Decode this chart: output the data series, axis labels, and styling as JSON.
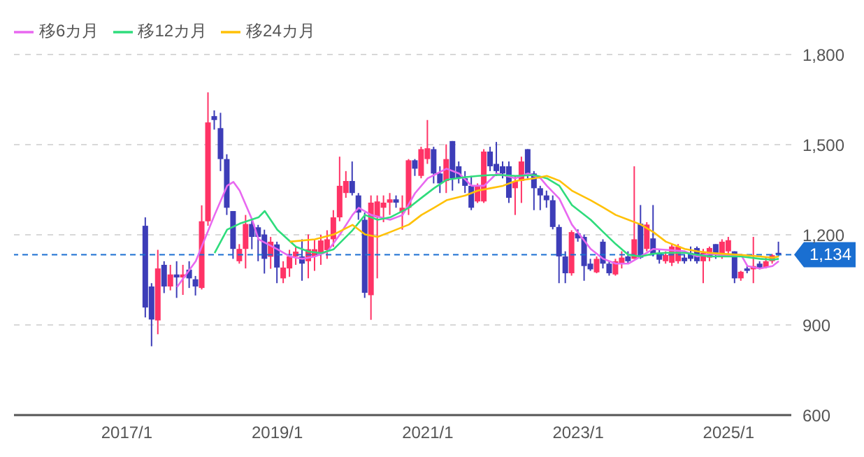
{
  "chart_data": {
    "type": "candlestick",
    "legend": "top left",
    "grid": "y",
    "xlim": [
      "2015-07",
      "2025-11"
    ],
    "xticks": [
      {
        "value": "2017-01",
        "label": "2017/1"
      },
      {
        "value": "2019-01",
        "label": "2019/1"
      },
      {
        "value": "2021-01",
        "label": "2021/1"
      },
      {
        "value": "2023-01",
        "label": "2023/1"
      },
      {
        "value": "2025-01",
        "label": "2025/1"
      }
    ],
    "ylim": [
      600,
      1800
    ],
    "yticks": [
      600,
      900,
      {
        "value": 1200,
        "label": "1,200"
      },
      {
        "value": 1500,
        "label": "1,500"
      },
      {
        "value": 1800,
        "label": "1,800"
      }
    ],
    "x": [
      "2017-04",
      "2017-05",
      "2017-06",
      "2017-07",
      "2017-08",
      "2017-09",
      "2017-10",
      "2017-11",
      "2017-12",
      "2018-01",
      "2018-02",
      "2018-03",
      "2018-04",
      "2018-05",
      "2018-06",
      "2018-07",
      "2018-08",
      "2018-09",
      "2018-10",
      "2018-11",
      "2018-12",
      "2019-01",
      "2019-02",
      "2019-03",
      "2019-04",
      "2019-05",
      "2019-06",
      "2019-07",
      "2019-08",
      "2019-09",
      "2019-10",
      "2019-11",
      "2019-12",
      "2020-01",
      "2020-02",
      "2020-03",
      "2020-04",
      "2020-05",
      "2020-06",
      "2020-07",
      "2020-08",
      "2020-09",
      "2020-10",
      "2020-11",
      "2020-12",
      "2021-01",
      "2021-02",
      "2021-03",
      "2021-04",
      "2021-05",
      "2021-06",
      "2021-07",
      "2021-08",
      "2021-09",
      "2021-10",
      "2021-11",
      "2021-12",
      "2022-01",
      "2022-02",
      "2022-03",
      "2022-04",
      "2022-05",
      "2022-06",
      "2022-07",
      "2022-08",
      "2022-09",
      "2022-10",
      "2022-11",
      "2022-12",
      "2023-01",
      "2023-02",
      "2023-03",
      "2023-04",
      "2023-05",
      "2023-06",
      "2023-07",
      "2023-08",
      "2023-09",
      "2023-10",
      "2023-11",
      "2023-12",
      "2024-01",
      "2024-02",
      "2024-03",
      "2024-04",
      "2024-05",
      "2024-06",
      "2024-07",
      "2024-08",
      "2024-09",
      "2024-10",
      "2024-11",
      "2024-12",
      "2025-01",
      "2025-02",
      "2025-03",
      "2025-04",
      "2025-05",
      "2025-06",
      "2025-07",
      "2025-08",
      "2025-09"
    ],
    "ohlc": [
      [
        1230,
        1258,
        925,
        958
      ],
      [
        1028,
        1039,
        829,
        918
      ],
      [
        915,
        1150,
        869,
        1088
      ],
      [
        1100,
        1112,
        1006,
        1028
      ],
      [
        1028,
        1100,
        1015,
        1068
      ],
      [
        1068,
        1112,
        990,
        1058
      ],
      [
        1058,
        1100,
        1000,
        1068
      ],
      [
        1084,
        1112,
        1023,
        1055
      ],
      [
        1052,
        1063,
        998,
        1028
      ],
      [
        1023,
        1298,
        1018,
        1245
      ],
      [
        1245,
        1674,
        1230,
        1574
      ],
      [
        1595,
        1614,
        1550,
        1582
      ],
      [
        1555,
        1606,
        1412,
        1452
      ],
      [
        1452,
        1468,
        1266,
        1290
      ],
      [
        1279,
        1279,
        1120,
        1153
      ],
      [
        1112,
        1169,
        1104,
        1153
      ],
      [
        1153,
        1266,
        1088,
        1236
      ],
      [
        1236,
        1250,
        1152,
        1193
      ],
      [
        1225,
        1233,
        1112,
        1193
      ],
      [
        1201,
        1217,
        1071,
        1120
      ],
      [
        1127,
        1193,
        1087,
        1177
      ],
      [
        1168,
        1177,
        1039,
        1091
      ],
      [
        1055,
        1112,
        1039,
        1091
      ],
      [
        1088,
        1150,
        1060,
        1128
      ],
      [
        1128,
        1160,
        1100,
        1144
      ],
      [
        1128,
        1185,
        1047,
        1104
      ],
      [
        1112,
        1201,
        1055,
        1152
      ],
      [
        1128,
        1185,
        1080,
        1152
      ],
      [
        1136,
        1200,
        1100,
        1181
      ],
      [
        1149,
        1215,
        1120,
        1185
      ],
      [
        1185,
        1282,
        1160,
        1258
      ],
      [
        1258,
        1460,
        1245,
        1363
      ],
      [
        1339,
        1412,
        1323,
        1379
      ],
      [
        1379,
        1444,
        1331,
        1339
      ],
      [
        1331,
        1339,
        1250,
        1274
      ],
      [
        1250,
        1274,
        990,
        1007
      ],
      [
        999,
        1331,
        917,
        1307
      ],
      [
        1258,
        1331,
        1055,
        1311
      ],
      [
        1290,
        1331,
        1242,
        1307
      ],
      [
        1307,
        1339,
        1266,
        1318
      ],
      [
        1318,
        1331,
        1290,
        1307
      ],
      [
        1274,
        1331,
        1217,
        1290
      ],
      [
        1290,
        1452,
        1266,
        1448
      ],
      [
        1448,
        1452,
        1396,
        1420
      ],
      [
        1396,
        1493,
        1388,
        1485
      ],
      [
        1452,
        1582,
        1436,
        1488
      ],
      [
        1485,
        1493,
        1371,
        1404
      ],
      [
        1404,
        1428,
        1339,
        1371
      ],
      [
        1379,
        1501,
        1339,
        1452
      ],
      [
        1512,
        1512,
        1347,
        1388
      ],
      [
        1428,
        1444,
        1371,
        1388
      ],
      [
        1388,
        1412,
        1339,
        1363
      ],
      [
        1363,
        1396,
        1282,
        1290
      ],
      [
        1311,
        1371,
        1306,
        1363
      ],
      [
        1311,
        1485,
        1306,
        1477
      ],
      [
        1477,
        1493,
        1412,
        1428
      ],
      [
        1436,
        1509,
        1396,
        1412
      ],
      [
        1428,
        1444,
        1388,
        1404
      ],
      [
        1428,
        1444,
        1306,
        1323
      ],
      [
        1355,
        1396,
        1266,
        1379
      ],
      [
        1379,
        1460,
        1306,
        1444
      ],
      [
        1485,
        1485,
        1388,
        1396
      ],
      [
        1404,
        1412,
        1282,
        1355
      ],
      [
        1355,
        1363,
        1282,
        1331
      ],
      [
        1331,
        1347,
        1290,
        1315
      ],
      [
        1315,
        1331,
        1218,
        1226
      ],
      [
        1226,
        1234,
        1039,
        1128
      ],
      [
        1128,
        1145,
        1039,
        1072
      ],
      [
        1072,
        1215,
        1064,
        1209
      ],
      [
        1205,
        1218,
        1177,
        1188
      ],
      [
        1193,
        1201,
        1047,
        1096
      ],
      [
        1104,
        1120,
        1080,
        1085
      ],
      [
        1075,
        1128,
        1072,
        1120
      ],
      [
        1177,
        1185,
        1088,
        1104
      ],
      [
        1104,
        1112,
        1064,
        1072
      ],
      [
        1068,
        1120,
        1064,
        1112
      ],
      [
        1104,
        1145,
        1088,
        1124
      ],
      [
        1128,
        1145,
        1104,
        1112
      ],
      [
        1120,
        1428,
        1120,
        1185
      ],
      [
        1237,
        1299,
        1120,
        1124
      ],
      [
        1153,
        1242,
        1145,
        1234
      ],
      [
        1188,
        1299,
        1128,
        1136
      ],
      [
        1140,
        1153,
        1104,
        1117
      ],
      [
        1112,
        1145,
        1104,
        1133
      ],
      [
        1107,
        1169,
        1096,
        1161
      ],
      [
        1112,
        1169,
        1104,
        1161
      ],
      [
        1124,
        1136,
        1104,
        1112
      ],
      [
        1140,
        1161,
        1112,
        1120
      ],
      [
        1156,
        1161,
        1104,
        1112
      ],
      [
        1112,
        1153,
        1039,
        1140
      ],
      [
        1124,
        1161,
        1112,
        1156
      ],
      [
        1169,
        1169,
        1120,
        1133
      ],
      [
        1133,
        1185,
        1120,
        1177
      ],
      [
        1145,
        1193,
        1137,
        1182
      ],
      [
        1145,
        1145,
        1039,
        1055
      ],
      [
        1055,
        1080,
        1047,
        1077
      ],
      [
        1088,
        1096,
        1072,
        1080
      ],
      [
        1085,
        1193,
        1039,
        1096
      ],
      [
        1104,
        1112,
        1085,
        1091
      ],
      [
        1091,
        1128,
        1088,
        1112
      ],
      [
        1112,
        1136,
        1104,
        1132
      ],
      [
        1140,
        1177,
        1128,
        1134
      ]
    ],
    "colors": [
      "#3d3db8",
      "#3d3db8",
      "#ff3366",
      "#3d3db8",
      "#ff3366",
      "#3d3db8",
      "#ff3366",
      "#3d3db8",
      "#3d3db8",
      "#ff3366",
      "#ff3366",
      "#3d3db8",
      "#3d3db8",
      "#3d3db8",
      "#3d3db8",
      "#ff3366",
      "#ff3366",
      "#3d3db8",
      "#3d3db8",
      "#3d3db8",
      "#ff3366",
      "#3d3db8",
      "#ff3366",
      "#ff3366",
      "#ff3366",
      "#3d3db8",
      "#ff3366",
      "#ff3366",
      "#ff3366",
      "#ff3366",
      "#ff3366",
      "#ff3366",
      "#ff3366",
      "#3d3db8",
      "#3d3db8",
      "#3d3db8",
      "#ff3366",
      "#ff3366",
      "#ff3366",
      "#ff3366",
      "#3d3db8",
      "#ff3366",
      "#ff3366",
      "#3d3db8",
      "#ff3366",
      "#ff3366",
      "#3d3db8",
      "#3d3db8",
      "#ff3366",
      "#3d3db8",
      "#3d3db8",
      "#3d3db8",
      "#3d3db8",
      "#ff3366",
      "#ff3366",
      "#3d3db8",
      "#3d3db8",
      "#3d3db8",
      "#3d3db8",
      "#ff3366",
      "#ff3366",
      "#3d3db8",
      "#3d3db8",
      "#3d3db8",
      "#3d3db8",
      "#3d3db8",
      "#3d3db8",
      "#3d3db8",
      "#ff3366",
      "#3d3db8",
      "#3d3db8",
      "#3d3db8",
      "#ff3366",
      "#3d3db8",
      "#3d3db8",
      "#ff3366",
      "#ff3366",
      "#3d3db8",
      "#ff3366",
      "#3d3db8",
      "#ff3366",
      "#3d3db8",
      "#3d3db8",
      "#ff3366",
      "#ff3366",
      "#ff3366",
      "#3d3db8",
      "#3d3db8",
      "#3d3db8",
      "#ff3366",
      "#ff3366",
      "#3d3db8",
      "#ff3366",
      "#ff3366",
      "#3d3db8",
      "#ff3366",
      "#3d3db8",
      "#ff3366",
      "#3d3db8",
      "#ff3366",
      "#ff3366",
      "#3d3db8"
    ],
    "series": [
      {
        "name": "移6カ月",
        "color": "#e868f0",
        "type": "line",
        "x": [
          "2017-09",
          "2017-12",
          "2018-03",
          "2018-05",
          "2018-06",
          "2018-07",
          "2018-09",
          "2018-10",
          "2019-01",
          "2019-03",
          "2019-05",
          "2019-07",
          "2019-09",
          "2019-11",
          "2020-01",
          "2020-02",
          "2020-04",
          "2020-07",
          "2020-09",
          "2020-11",
          "2021-01",
          "2021-04",
          "2021-06",
          "2021-08",
          "2021-10",
          "2021-12",
          "2022-03",
          "2022-05",
          "2022-07",
          "2022-08",
          "2022-10",
          "2022-12",
          "2023-03",
          "2023-05",
          "2023-07",
          "2023-09",
          "2023-11",
          "2024-01",
          "2024-03",
          "2024-06",
          "2024-08",
          "2024-10",
          "2024-12",
          "2025-03",
          "2025-04",
          "2025-06",
          "2025-08",
          "2025-09"
        ],
        "values": [
          1026,
          1112,
          1266,
          1363,
          1376,
          1347,
          1250,
          1185,
          1152,
          1128,
          1120,
          1128,
          1144,
          1201,
          1266,
          1290,
          1266,
          1250,
          1266,
          1339,
          1388,
          1420,
          1404,
          1363,
          1363,
          1404,
          1388,
          1404,
          1388,
          1363,
          1320,
          1234,
          1153,
          1120,
          1104,
          1104,
          1128,
          1153,
          1150,
          1145,
          1128,
          1137,
          1133,
          1133,
          1096,
          1088,
          1096,
          1112
        ]
      },
      {
        "name": "移12カ月",
        "color": "#2fdc7c",
        "type": "line",
        "x": [
          "2018-03",
          "2018-05",
          "2018-07",
          "2018-10",
          "2018-11",
          "2019-01",
          "2019-04",
          "2019-06",
          "2019-08",
          "2019-10",
          "2020-01",
          "2020-03",
          "2020-05",
          "2020-07",
          "2020-10",
          "2020-12",
          "2021-02",
          "2021-04",
          "2021-07",
          "2021-09",
          "2021-11",
          "2022-01",
          "2022-03",
          "2022-06",
          "2022-08",
          "2022-10",
          "2022-12",
          "2023-03",
          "2023-05",
          "2023-07",
          "2023-09",
          "2023-11",
          "2024-01",
          "2024-03",
          "2024-06",
          "2024-08",
          "2024-10",
          "2024-12",
          "2025-03",
          "2025-06",
          "2025-08",
          "2025-09"
        ],
        "values": [
          1139,
          1217,
          1237,
          1258,
          1279,
          1217,
          1160,
          1144,
          1139,
          1152,
          1215,
          1266,
          1250,
          1258,
          1290,
          1323,
          1355,
          1383,
          1392,
          1396,
          1399,
          1399,
          1396,
          1399,
          1388,
          1363,
          1299,
          1250,
          1209,
          1169,
          1133,
          1128,
          1137,
          1140,
          1140,
          1133,
          1128,
          1128,
          1128,
          1120,
          1117,
          1120
        ]
      },
      {
        "name": "移24カ月",
        "color": "#ffc107",
        "type": "line",
        "x": [
          "2019-03",
          "2019-07",
          "2019-10",
          "2020-01",
          "2020-03",
          "2020-05",
          "2020-07",
          "2020-10",
          "2020-12",
          "2021-02",
          "2021-04",
          "2021-07",
          "2021-09",
          "2021-11",
          "2022-01",
          "2022-03",
          "2022-06",
          "2022-08",
          "2022-10",
          "2022-12",
          "2023-03",
          "2023-05",
          "2023-07",
          "2023-09",
          "2023-11",
          "2024-01",
          "2024-03",
          "2024-06",
          "2024-08",
          "2024-10",
          "2024-12",
          "2025-03",
          "2025-06",
          "2025-08",
          "2025-09"
        ],
        "values": [
          1177,
          1185,
          1201,
          1233,
          1201,
          1193,
          1209,
          1234,
          1266,
          1290,
          1315,
          1331,
          1347,
          1355,
          1363,
          1379,
          1388,
          1396,
          1380,
          1347,
          1315,
          1291,
          1266,
          1250,
          1234,
          1209,
          1177,
          1153,
          1145,
          1140,
          1137,
          1133,
          1128,
          1124,
          1128
        ]
      }
    ],
    "ref_lines": [
      {
        "axis": "y",
        "value": 1134,
        "label": "1,134",
        "color": "#1a6fd1",
        "line_style": "dashed"
      }
    ]
  }
}
